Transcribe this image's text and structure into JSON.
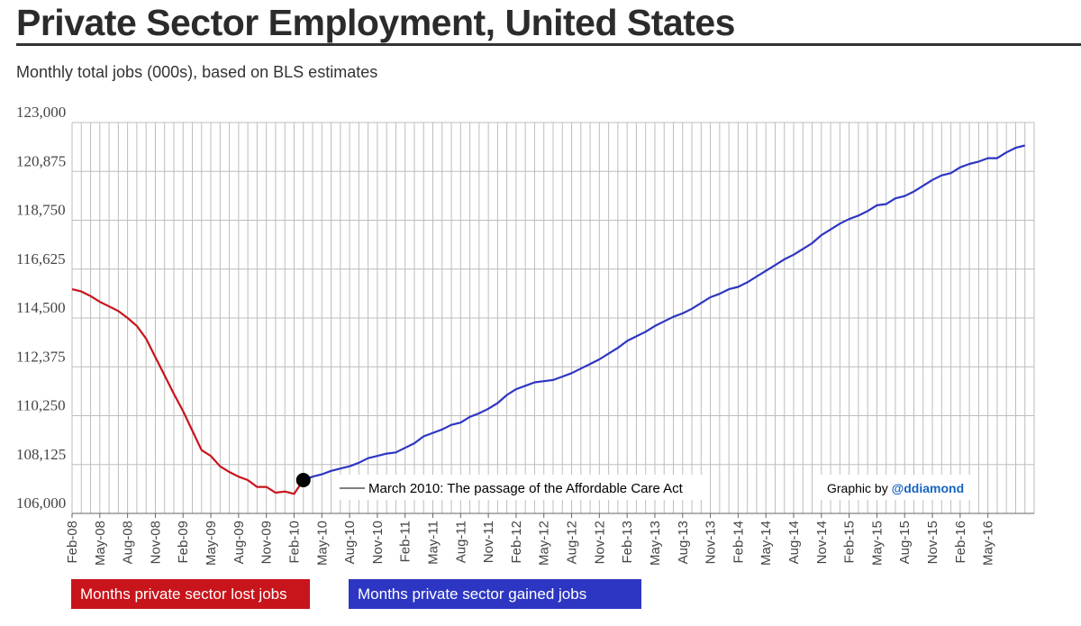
{
  "title": "Private Sector Employment, United States",
  "subtitle": "Monthly total jobs (000s), based on BLS estimates",
  "colors": {
    "lost": "#c8141b",
    "gained": "#2d36c2",
    "credit_handle": "#1565c0",
    "grid": "#bdbdbd"
  },
  "legend": {
    "lost": "Months private sector lost jobs",
    "gained": "Months private sector gained jobs"
  },
  "annotation": "March 2010: The passage of the Affordable Care Act",
  "credit": {
    "prefix": "Graphic by ",
    "handle": "@ddiamond"
  },
  "chart_data": {
    "type": "line",
    "title": "Private Sector Employment, United States",
    "ylabel": "",
    "xlabel": "",
    "ylim": [
      106000,
      123000
    ],
    "y_ticks": [
      106000,
      108125,
      110250,
      112375,
      114500,
      116625,
      118750,
      120875,
      123000
    ],
    "y_tick_labels": [
      "106,000",
      "108,125",
      "110,250",
      "112,375",
      "114,500",
      "116,625",
      "118,750",
      "120,875",
      "123,000"
    ],
    "x_tick_labels": [
      "Feb-08",
      "May-08",
      "Aug-08",
      "Nov-08",
      "Feb-09",
      "May-09",
      "Aug-09",
      "Nov-09",
      "Feb-10",
      "May-10",
      "Aug-10",
      "Nov-10",
      "Feb-11",
      "May-11",
      "Aug-11",
      "Nov-11",
      "Feb-12",
      "May-12",
      "Aug-12",
      "Nov-12",
      "Feb-13",
      "May-13",
      "Aug-13",
      "Nov-13",
      "Feb-14",
      "May-14",
      "Aug-14",
      "Nov-14",
      "Feb-15",
      "May-15",
      "Aug-15",
      "Nov-15",
      "Feb-16",
      "May-16"
    ],
    "x_start": "2008-02",
    "grid": true,
    "marker": {
      "x": "2010-03",
      "y": 107450
    },
    "series": [
      {
        "name": "Months private sector lost jobs",
        "color": "#c8141b",
        "x": [
          "2008-02",
          "2008-03",
          "2008-04",
          "2008-05",
          "2008-06",
          "2008-07",
          "2008-08",
          "2008-09",
          "2008-10",
          "2008-11",
          "2008-12",
          "2009-01",
          "2009-02",
          "2009-03",
          "2009-04",
          "2009-05",
          "2009-06",
          "2009-07",
          "2009-08",
          "2009-09",
          "2009-10",
          "2009-11",
          "2009-12",
          "2010-01",
          "2010-02",
          "2010-03"
        ],
        "y": [
          115750,
          115650,
          115450,
          115200,
          115000,
          114800,
          114500,
          114150,
          113600,
          112800,
          112000,
          111200,
          110450,
          109600,
          108750,
          108500,
          108050,
          107800,
          107600,
          107450,
          107150,
          107150,
          106900,
          106950,
          106850,
          107450
        ]
      },
      {
        "name": "Months private sector gained jobs",
        "color": "#2d36c2",
        "x": [
          "2010-03",
          "2010-04",
          "2010-05",
          "2010-06",
          "2010-07",
          "2010-08",
          "2010-09",
          "2010-10",
          "2010-11",
          "2010-12",
          "2011-01",
          "2011-02",
          "2011-03",
          "2011-04",
          "2011-05",
          "2011-06",
          "2011-07",
          "2011-08",
          "2011-09",
          "2011-10",
          "2011-11",
          "2011-12",
          "2012-01",
          "2012-02",
          "2012-03",
          "2012-04",
          "2012-05",
          "2012-06",
          "2012-07",
          "2012-08",
          "2012-09",
          "2012-10",
          "2012-11",
          "2012-12",
          "2013-01",
          "2013-02",
          "2013-03",
          "2013-04",
          "2013-05",
          "2013-06",
          "2013-07",
          "2013-08",
          "2013-09",
          "2013-10",
          "2013-11",
          "2013-12",
          "2014-01",
          "2014-02",
          "2014-03",
          "2014-04",
          "2014-05",
          "2014-06",
          "2014-07",
          "2014-08",
          "2014-09",
          "2014-10",
          "2014-11",
          "2014-12",
          "2015-01",
          "2015-02",
          "2015-03",
          "2015-04",
          "2015-05",
          "2015-06",
          "2015-07",
          "2015-08",
          "2015-09",
          "2015-10",
          "2015-11",
          "2015-12",
          "2016-01",
          "2016-02",
          "2016-03",
          "2016-04",
          "2016-05",
          "2016-06",
          "2016-07",
          "2016-08",
          "2016-09"
        ],
        "y": [
          107450,
          107600,
          107700,
          107850,
          107950,
          108050,
          108200,
          108400,
          108500,
          108600,
          108650,
          108850,
          109050,
          109350,
          109500,
          109650,
          109850,
          109950,
          110200,
          110350,
          110550,
          110800,
          111150,
          111400,
          111550,
          111700,
          111750,
          111800,
          111950,
          112100,
          112300,
          112500,
          112700,
          112950,
          113200,
          113500,
          113700,
          113900,
          114150,
          114350,
          114550,
          114700,
          114900,
          115150,
          115400,
          115550,
          115750,
          115850,
          116050,
          116300,
          116550,
          116800,
          117050,
          117250,
          117500,
          117750,
          118100,
          118350,
          118600,
          118800,
          118950,
          119150,
          119400,
          119450,
          119700,
          119800,
          120000,
          120250,
          120500,
          120700,
          120800,
          121050,
          121200,
          121300,
          121450,
          121450,
          121700,
          121900,
          122000
        ]
      }
    ]
  }
}
